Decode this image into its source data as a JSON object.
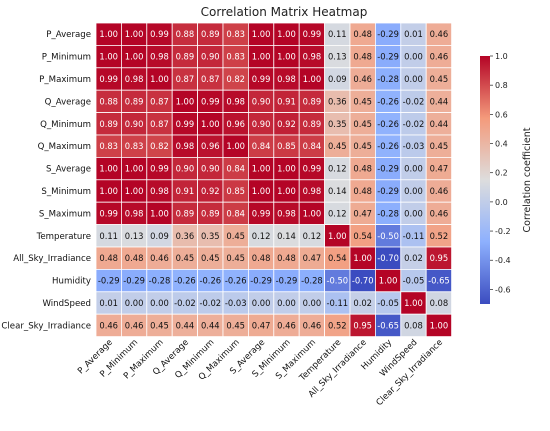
{
  "chart_data": {
    "type": "heatmap",
    "title": "Correlation Matrix Heatmap",
    "variables": [
      "P_Average",
      "P_Minimum",
      "P_Maximum",
      "Q_Average",
      "Q_Minimum",
      "Q_Maximum",
      "S_Average",
      "S_Minimum",
      "S_Maximum",
      "Temperature",
      "All_Sky_Irradiance",
      "Humidity",
      "WindSpeed",
      "Clear_Sky_Irradiance"
    ],
    "values": [
      [
        1.0,
        1.0,
        0.99,
        0.88,
        0.89,
        0.83,
        1.0,
        1.0,
        0.99,
        0.11,
        0.48,
        -0.29,
        0.01,
        0.46
      ],
      [
        1.0,
        1.0,
        0.98,
        0.89,
        0.9,
        0.83,
        1.0,
        1.0,
        0.98,
        0.13,
        0.48,
        -0.29,
        0.0,
        0.46
      ],
      [
        0.99,
        0.98,
        1.0,
        0.87,
        0.87,
        0.82,
        0.99,
        0.98,
        1.0,
        0.09,
        0.46,
        -0.28,
        0.0,
        0.45
      ],
      [
        0.88,
        0.89,
        0.87,
        1.0,
        0.99,
        0.98,
        0.9,
        0.91,
        0.89,
        0.36,
        0.45,
        -0.26,
        -0.02,
        0.44
      ],
      [
        0.89,
        0.9,
        0.87,
        0.99,
        1.0,
        0.96,
        0.9,
        0.92,
        0.89,
        0.35,
        0.45,
        -0.26,
        -0.02,
        0.44
      ],
      [
        0.83,
        0.83,
        0.82,
        0.98,
        0.96,
        1.0,
        0.84,
        0.85,
        0.84,
        0.45,
        0.45,
        -0.26,
        -0.03,
        0.45
      ],
      [
        1.0,
        1.0,
        0.99,
        0.9,
        0.9,
        0.84,
        1.0,
        1.0,
        0.99,
        0.12,
        0.48,
        -0.29,
        0.0,
        0.47
      ],
      [
        1.0,
        1.0,
        0.98,
        0.91,
        0.92,
        0.85,
        1.0,
        1.0,
        0.98,
        0.14,
        0.48,
        -0.29,
        0.0,
        0.46
      ],
      [
        0.99,
        0.98,
        1.0,
        0.89,
        0.89,
        0.84,
        0.99,
        0.98,
        1.0,
        0.12,
        0.47,
        -0.28,
        0.0,
        0.46
      ],
      [
        0.11,
        0.13,
        0.09,
        0.36,
        0.35,
        0.45,
        0.12,
        0.14,
        0.12,
        1.0,
        0.54,
        -0.5,
        -0.11,
        0.52
      ],
      [
        0.48,
        0.48,
        0.46,
        0.45,
        0.45,
        0.45,
        0.48,
        0.48,
        0.47,
        0.54,
        1.0,
        -0.7,
        0.02,
        0.95
      ],
      [
        -0.29,
        -0.29,
        -0.28,
        -0.26,
        -0.26,
        -0.26,
        -0.29,
        -0.29,
        -0.28,
        -0.5,
        -0.7,
        1.0,
        -0.05,
        -0.65
      ],
      [
        0.01,
        0.0,
        0.0,
        -0.02,
        -0.02,
        -0.03,
        0.0,
        0.0,
        0.0,
        -0.11,
        0.02,
        -0.05,
        1.0,
        0.08
      ],
      [
        0.46,
        0.46,
        0.45,
        0.44,
        0.44,
        0.45,
        0.47,
        0.46,
        0.46,
        0.52,
        0.95,
        -0.65,
        0.08,
        1.0
      ]
    ],
    "colorbar": {
      "label": "Correlation coefficient",
      "range": [
        -0.7,
        1.0
      ],
      "ticks": [
        "1.0",
        "0.8",
        "0.6",
        "0.4",
        "0.2",
        "0.0",
        "-0.2",
        "-0.4",
        "-0.6"
      ],
      "colormap": "coolwarm",
      "colors": {
        "low": "#3b4cc0",
        "mid": "#dddddd",
        "high": "#b40426"
      }
    },
    "annotations": "values shown in every cell with 2 decimals",
    "grid": false,
    "legend": "colorbar right"
  }
}
